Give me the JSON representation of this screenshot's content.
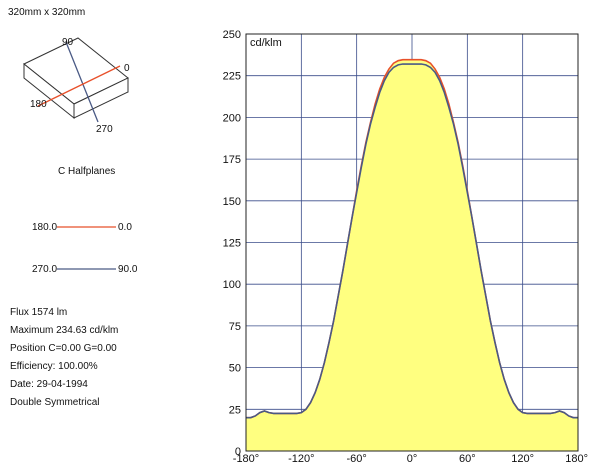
{
  "dimensions": "320mm x 320mm",
  "cube_labels": {
    "top": "90",
    "right": "0",
    "left": "180",
    "bottom": "270"
  },
  "halfplanes_title": "C Halfplanes",
  "legend": [
    {
      "left": "180.0",
      "right": "0.0",
      "color": "#e8502a"
    },
    {
      "left": "270.0",
      "right": "90.0",
      "color": "#4a5a85"
    }
  ],
  "info": {
    "flux": "Flux 1574  lm",
    "maximum": "Maximum 234.63  cd/klm",
    "position": "Position C=0.00 G=0.00",
    "efficiency": "Efficiency: 100.00%",
    "date": "Date: 29-04-1994",
    "symmetry": "Double Symmetrical"
  },
  "chart_data": {
    "type": "line",
    "unit_label": "cd/klm",
    "xlim": [
      -180,
      180
    ],
    "ylim": [
      0,
      250
    ],
    "x_ticks": [
      -180,
      -120,
      -60,
      0,
      60,
      120,
      180
    ],
    "x_tick_labels": [
      "-180°",
      "-120°",
      "-60°",
      "0°",
      "60°",
      "120°",
      "180°"
    ],
    "y_ticks": [
      0,
      25,
      50,
      75,
      100,
      125,
      150,
      175,
      200,
      225,
      250
    ],
    "y_tick_labels": [
      "0",
      "25",
      "50",
      "75",
      "100",
      "125",
      "150",
      "175",
      "200",
      "225",
      "250"
    ],
    "fill_color": "#ffff80",
    "grid_color": "#3a4c8a",
    "x": [
      -180,
      -175,
      -170,
      -165,
      -160,
      -155,
      -150,
      -145,
      -140,
      -135,
      -130,
      -125,
      -120,
      -115,
      -110,
      -105,
      -100,
      -95,
      -90,
      -85,
      -80,
      -75,
      -70,
      -65,
      -60,
      -55,
      -50,
      -45,
      -40,
      -35,
      -30,
      -25,
      -20,
      -15,
      -10,
      -5,
      0,
      5,
      10,
      15,
      20,
      25,
      30,
      35,
      40,
      45,
      50,
      55,
      60,
      65,
      70,
      75,
      80,
      85,
      90,
      95,
      100,
      105,
      110,
      115,
      120,
      125,
      130,
      135,
      140,
      145,
      150,
      155,
      160,
      165,
      170,
      175,
      180
    ],
    "series": [
      {
        "color": "#e8502a",
        "values": [
          20,
          20,
          21,
          23,
          24,
          23,
          22.5,
          22.5,
          22.5,
          22.5,
          22.5,
          22.5,
          23,
          25,
          29,
          35,
          43,
          53,
          65,
          78,
          93,
          108,
          124,
          140,
          156,
          171,
          185,
          197,
          208,
          217,
          224,
          229,
          232.5,
          234,
          234.6,
          234.6,
          234.6,
          234.6,
          234.6,
          234,
          232.5,
          229,
          224,
          217,
          208,
          197,
          185,
          171,
          156,
          140,
          124,
          108,
          93,
          78,
          65,
          53,
          43,
          35,
          29,
          25,
          23,
          22.5,
          22.5,
          22.5,
          22.5,
          22.5,
          22.5,
          23,
          24,
          23,
          21,
          20,
          20
        ]
      },
      {
        "color": "#4a5a85",
        "values": [
          20,
          20,
          21,
          23,
          24,
          23,
          22.5,
          22.5,
          22.5,
          22.5,
          22.5,
          22.5,
          23,
          25,
          29,
          35,
          43,
          53,
          65,
          78,
          93,
          108,
          124,
          140,
          155,
          170,
          184,
          196,
          206,
          215,
          222,
          227,
          230,
          231.5,
          232,
          232,
          232,
          232,
          232,
          231.5,
          230,
          227,
          222,
          215,
          206,
          196,
          184,
          170,
          155,
          140,
          124,
          108,
          93,
          78,
          65,
          53,
          43,
          35,
          29,
          25,
          23,
          22.5,
          22.5,
          22.5,
          22.5,
          22.5,
          22.5,
          23,
          24,
          23,
          21,
          20,
          20
        ]
      }
    ]
  }
}
